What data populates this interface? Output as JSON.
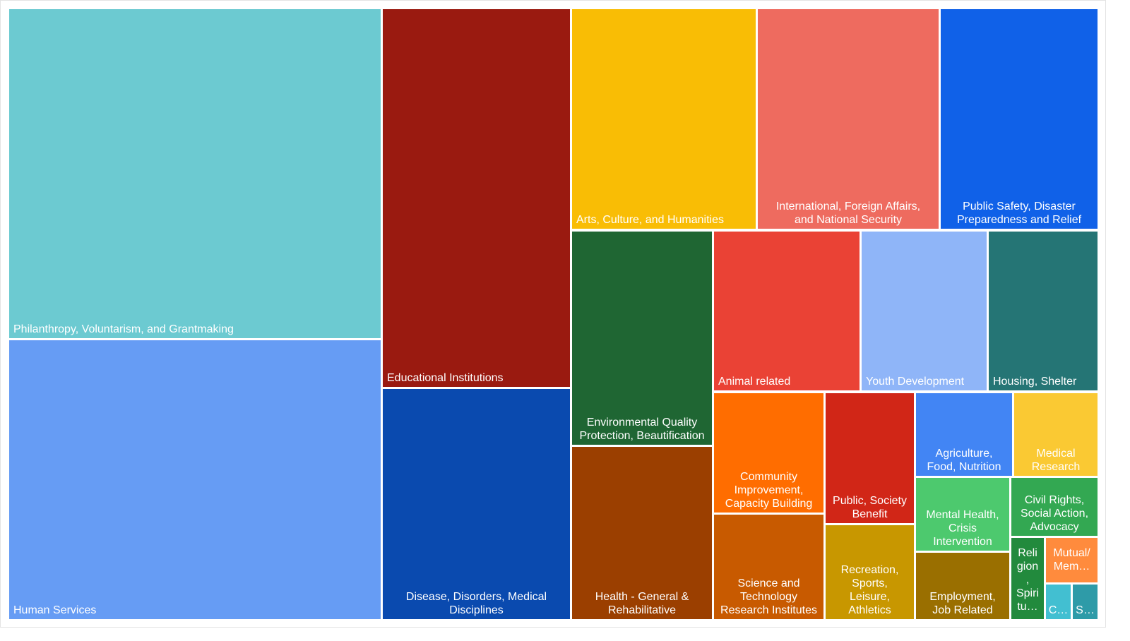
{
  "chart_data": {
    "type": "treemap",
    "title": "",
    "items": [
      {
        "label": "Philanthropy, Voluntarism, and Grantmaking",
        "value": 24.5,
        "color": "#6ccad1"
      },
      {
        "label": "Human Services",
        "value": 20.8,
        "color": "#669cf4"
      },
      {
        "label": "Educational Institutions",
        "value": 14.3,
        "color": "#9a1a10"
      },
      {
        "label": "Disease, Disorders, Medical Disciplines",
        "value": 8.8,
        "color": "#0a4aaf"
      },
      {
        "label": "Arts, Culture, and Humanities",
        "value": 8.1,
        "color": "#f9bd05"
      },
      {
        "label": "International, Foreign Affairs, and National Security",
        "value": 8.0,
        "color": "#ee6b5f"
      },
      {
        "label": "Public Safety, Disaster Preparedness and Relief",
        "value": 6.8,
        "color": "#1061e8"
      },
      {
        "label": "Environmental Quality Protection, Beautification",
        "value": 6.0,
        "color": "#1f6633"
      },
      {
        "label": "Health - General & Rehabilitative",
        "value": 5.3,
        "color": "#9b3f00"
      },
      {
        "label": "Animal related",
        "value": 4.7,
        "color": "#ea4235"
      },
      {
        "label": "Youth Development",
        "value": 4.0,
        "color": "#8fb5f8"
      },
      {
        "label": "Housing, Shelter",
        "value": 3.6,
        "color": "#257575"
      },
      {
        "label": "Community Improvement, Capacity Building",
        "value": 2.7,
        "color": "#ff6d00"
      },
      {
        "label": "Science and Technology Research Institutes",
        "value": 2.1,
        "color": "#c85a00"
      },
      {
        "label": "Public, Society Benefit",
        "value": 2.3,
        "color": "#d12617"
      },
      {
        "label": "Recreation, Sports, Leisure, Athletics",
        "value": 1.8,
        "color": "#c89700"
      },
      {
        "label": "Agriculture, Food, Nutrition",
        "value": 1.6,
        "color": "#4285f4"
      },
      {
        "label": "Medical Research",
        "value": 1.4,
        "color": "#fac933"
      },
      {
        "label": "Mental Health, Crisis Intervention",
        "value": 1.3,
        "color": "#4dc96e"
      },
      {
        "label": "Civil Rights, Social Action, Advocacy",
        "value": 0.9,
        "color": "#33a852"
      },
      {
        "label": "Employment, Job Related",
        "value": 1.1,
        "color": "#9a6f00"
      },
      {
        "label": "Religion, Spirituality",
        "display_lines": [
          "Reli",
          "gion",
          ",",
          "Spiri",
          "tu…"
        ],
        "value": 0.5,
        "color": "#228a3d"
      },
      {
        "label": "Mutual/Membership",
        "display_lines": [
          "Mutual/",
          "Mem…"
        ],
        "value": 0.35,
        "color": "#ff8b3d"
      },
      {
        "label": "C…",
        "value": 0.15,
        "color": "#42bfd1"
      },
      {
        "label": "S…",
        "value": 0.15,
        "color": "#2e9ba8"
      }
    ]
  }
}
